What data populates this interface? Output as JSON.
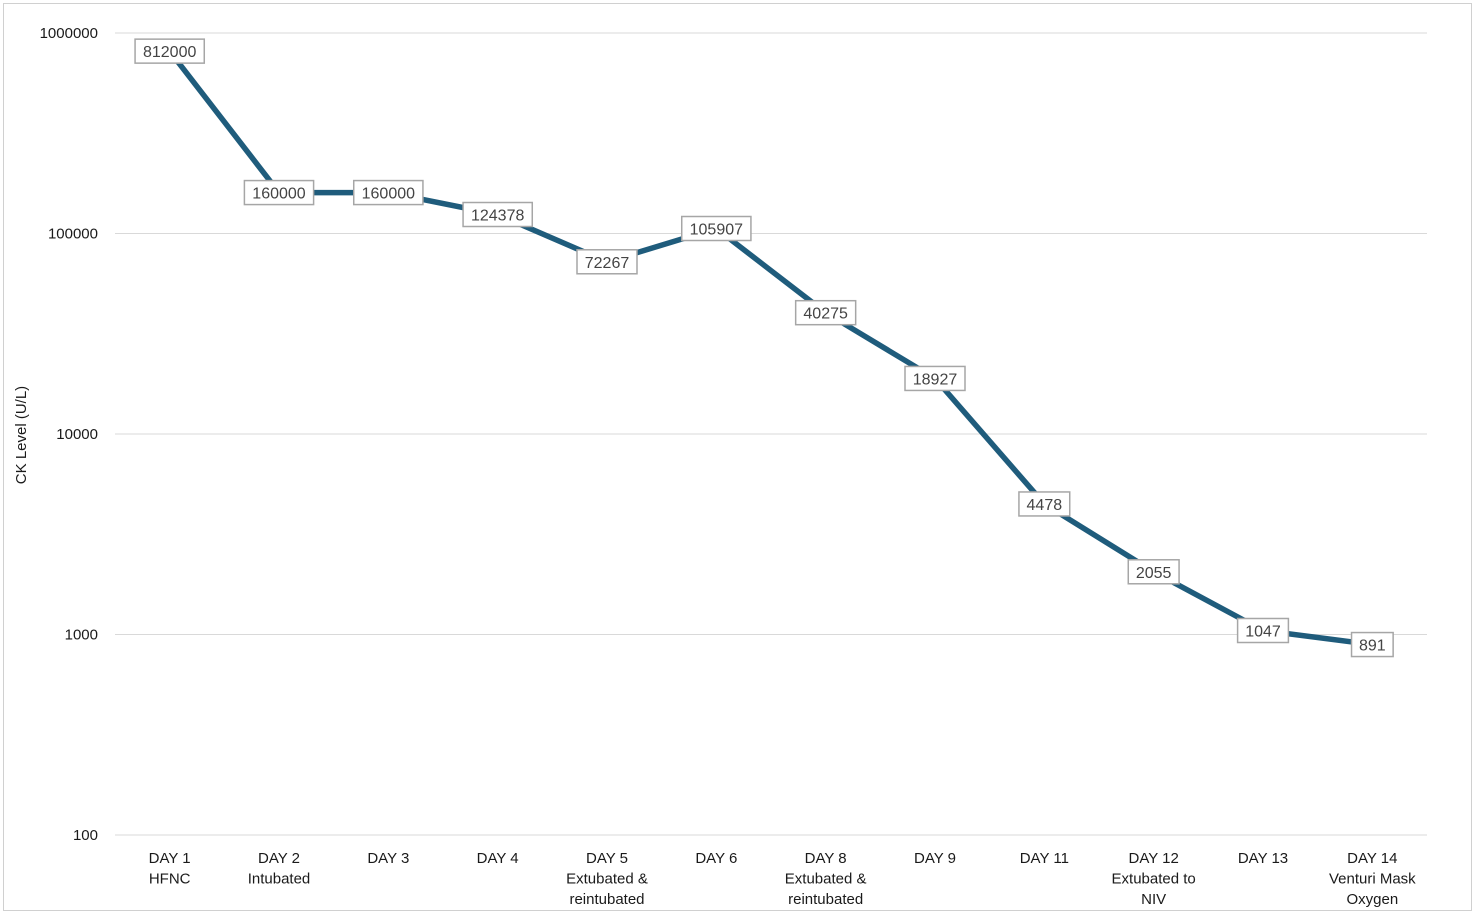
{
  "chart_data": {
    "type": "line",
    "scale": "log",
    "title": "",
    "ylabel": "CK Level (U/L)",
    "xlabel": "",
    "ylim": [
      100,
      1000000
    ],
    "yticks": [
      1000000,
      100000,
      10000,
      1000,
      100
    ],
    "ytick_labels": [
      "1000000",
      "100000",
      "10000",
      "1000",
      "100"
    ],
    "grid": true,
    "legend": "none",
    "line_color": "#1f5c7c",
    "categories": [
      [
        "DAY 1",
        "HFNC"
      ],
      [
        "DAY 2",
        "Intubated"
      ],
      [
        "DAY 3"
      ],
      [
        "DAY 4"
      ],
      [
        "DAY 5",
        "Extubated &",
        "reintubated"
      ],
      [
        "DAY 6"
      ],
      [
        "DAY 8",
        "Extubated &",
        "reintubated"
      ],
      [
        "DAY 9"
      ],
      [
        "DAY 11"
      ],
      [
        "DAY 12",
        "Extubated to",
        "NIV"
      ],
      [
        "DAY 13"
      ],
      [
        "DAY 14",
        "Venturi Mask",
        "Oxygen"
      ]
    ],
    "series": [
      {
        "values": [
          812000,
          160000,
          160000,
          124378,
          72267,
          105907,
          40275,
          18927,
          4478,
          2055,
          1047,
          891
        ],
        "labels": [
          "812000",
          "160000",
          "160000",
          "124378",
          "72267",
          "105907",
          "40275",
          "18927",
          "4478",
          "2055",
          "1047",
          "891"
        ]
      }
    ]
  }
}
